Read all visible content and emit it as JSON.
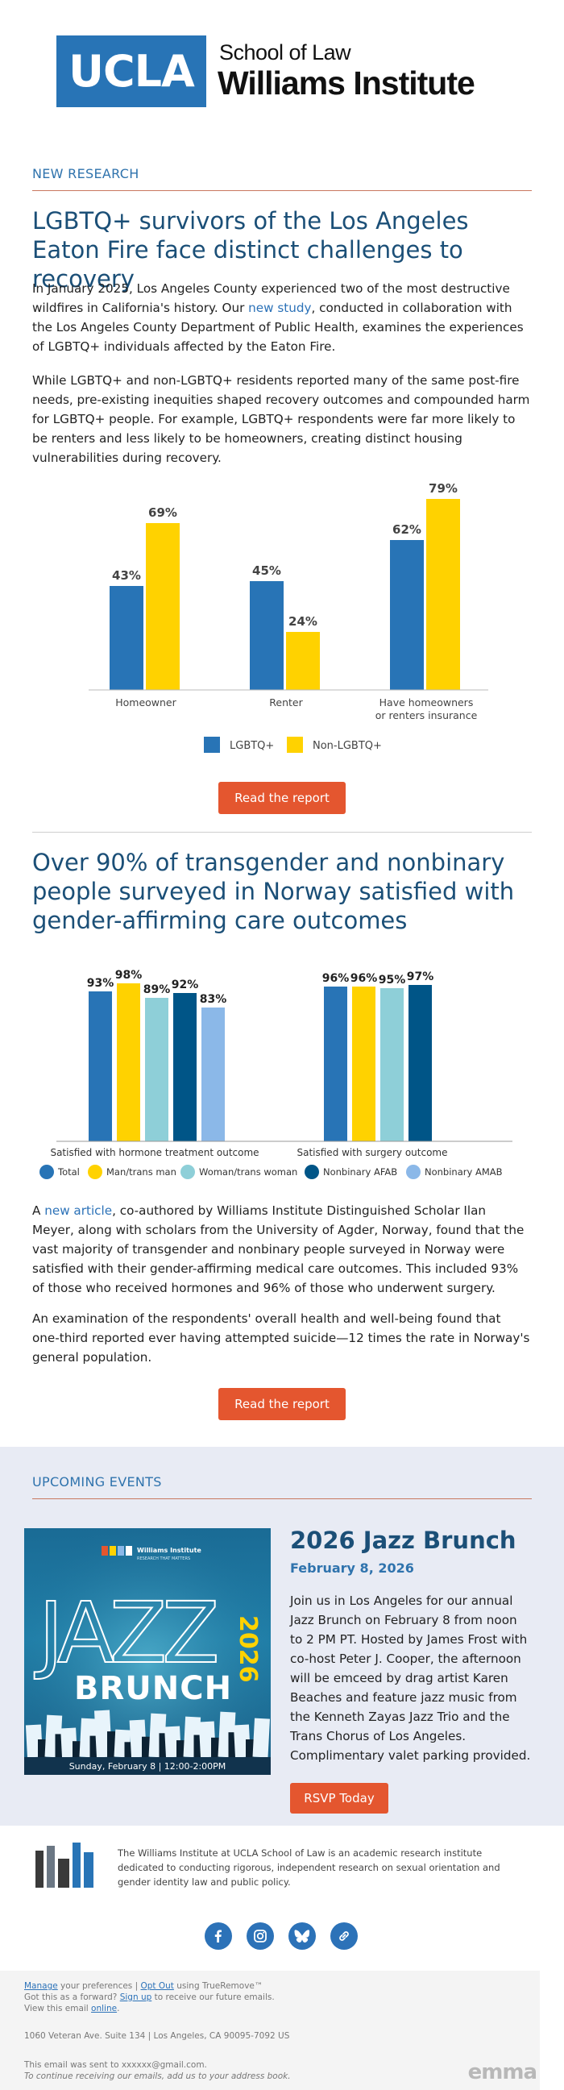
{
  "header": {
    "ucla": "UCLA",
    "school_of_law": "School of Law",
    "institute": "Williams Institute"
  },
  "research": {
    "section_label": "NEW RESEARCH",
    "article1": {
      "title": "LGBTQ+ survivors of the Los Angeles Eaton Fire face distinct challenges to recovery",
      "p1_before": "In January 2025, Los Angeles County experienced two of the most destructive wildfires in California's history. Our ",
      "p1_link": "new study",
      "p1_after": ", conducted in collaboration with the Los Angeles County Department of Public Health, examines the experiences of LGBTQ+ individuals affected by the Eaton Fire.",
      "p2": "While LGBTQ+ and non-LGBTQ+ residents reported many of the same post-fire needs, pre-existing inequities shaped recovery outcomes and compounded harm for LGBTQ+ people. For example, LGBTQ+ respondents were far more likely to be renters and less likely to be homeowners, creating distinct housing vulnerabilities during recovery.",
      "button": "Read the report"
    },
    "article2": {
      "title": "Over 90% of transgender and nonbinary people surveyed in Norway satisfied with gender-affirming care outcomes",
      "p1_before": "A ",
      "p1_link": "new article",
      "p1_after": ", co-authored by Williams Institute Distinguished Scholar Ilan Meyer, along with scholars from the University of Agder, Norway, found that the vast majority of transgender and nonbinary people surveyed in Norway were satisfied with their gender-affirming medical care outcomes. This included 93% of those who received hormones and 96% of those who underwent surgery.",
      "p2": "An examination of the respondents' overall health and well-being found that one-third reported ever having attempted suicide—12 times the rate in Norway's general population.",
      "button": "Read the report"
    }
  },
  "chart_data": [
    {
      "type": "bar",
      "categories": [
        "Homeowner",
        "Renter",
        "Have homeowners or renters insurance"
      ],
      "category_lines": [
        [
          "Homeowner"
        ],
        [
          "Renter"
        ],
        [
          "Have homeowners",
          "or renters insurance"
        ]
      ],
      "series": [
        {
          "name": "LGBTQ+",
          "values": [
            43,
            45,
            62
          ],
          "color": "#2874b6"
        },
        {
          "name": "Non-LGBTQ+",
          "values": [
            69,
            24,
            79
          ],
          "color": "#ffd200"
        }
      ],
      "value_suffix": "%",
      "ylim": [
        0,
        80
      ],
      "legend": "bottom-center"
    },
    {
      "type": "bar",
      "categories": [
        "Satisfied with hormone treatment outcome",
        "Satisfied with surgery outcome"
      ],
      "series": [
        {
          "name": "Total",
          "values": [
            93,
            96
          ],
          "color": "#2874b6"
        },
        {
          "name": "Man/trans man",
          "values": [
            98,
            96
          ],
          "color": "#ffd200"
        },
        {
          "name": "Woman/trans woman",
          "values": [
            89,
            95
          ],
          "color": "#8ecfd8"
        },
        {
          "name": "Nonbinary AFAB",
          "values": [
            92,
            97
          ],
          "color": "#005587"
        },
        {
          "name": "Nonbinary AMAB",
          "values": [
            83,
            null
          ],
          "color": "#8bb8e8"
        }
      ],
      "value_suffix": "%",
      "ylim": [
        0,
        100
      ],
      "legend": "bottom-center"
    }
  ],
  "events": {
    "section_label": "UPCOMING EVENTS",
    "image": {
      "logo_text": "Williams Institute",
      "logo_sub": "RESEARCH THAT MATTERS",
      "jazz": "JAZZ",
      "year": "2026",
      "brunch": "BRUNCH",
      "banner": "Sunday, February 8  |  12:00-2:00PM"
    },
    "title": "2026 Jazz Brunch",
    "date": "February 8, 2026",
    "description": "Join us in Los Angeles for our annual Jazz Brunch on February 8 from noon to 2 PM PT. Hosted by James Frost with co-host Peter J. Cooper, the afternoon will be emceed by drag artist Karen Beaches and feature jazz music from the Kenneth Zayas Jazz Trio and the Trans Chorus of Los Angeles. Complimentary valet parking provided.",
    "button": "RSVP Today"
  },
  "footer": {
    "about": "The Williams Institute at UCLA School of Law is an academic research institute dedicated to conducting rigorous, independent research on sexual orientation and gender identity law and public policy.",
    "social": [
      "facebook-icon",
      "instagram-icon",
      "bluesky-icon",
      "link-icon"
    ],
    "manage": "Manage",
    "manage_rest": " your preferences | ",
    "opt_out": "Opt Out",
    "opt_out_rest": " using TrueRemove™",
    "forward": "Got this as a forward? ",
    "sign_up": "Sign up",
    "sign_up_rest": " to receive our future emails.",
    "view": "View this email ",
    "online": "online",
    "view_end": ".",
    "address": "1060 Veteran Ave. Suite 134 | Los Angeles, CA 90095-7092 US",
    "sent_to": "This email was sent to xxxxxx@gmail.com.",
    "continue": "To continue receiving our emails, add us to your address book.",
    "emma": "emma"
  }
}
